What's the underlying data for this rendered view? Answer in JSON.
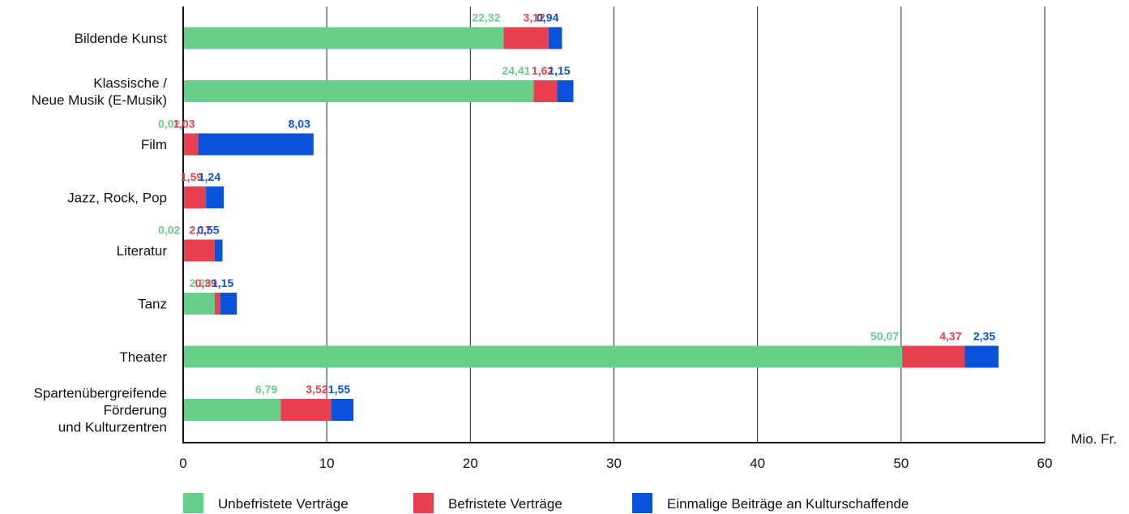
{
  "chart_data": {
    "type": "bar",
    "orientation": "horizontal",
    "stacked": true,
    "unit_label": "Mio. Fr.",
    "xlim": [
      0,
      60
    ],
    "x_ticks": [
      0,
      10,
      20,
      30,
      40,
      50,
      60
    ],
    "x_tick_labels": [
      "0",
      "10",
      "20",
      "30",
      "40",
      "50",
      "60"
    ],
    "grid": true,
    "legend_position": "bottom",
    "categories": [
      [
        "Bildende Kunst"
      ],
      [
        "Klassische /",
        "Neue Musik (E-Musik)"
      ],
      [
        "Film"
      ],
      [
        "Jazz, Rock, Pop"
      ],
      [
        "Literatur"
      ],
      [
        "Tanz"
      ],
      [
        "Theater"
      ],
      [
        "Spartenübergreifende",
        "Förderung",
        "und Kulturzentren"
      ]
    ],
    "series": [
      {
        "name": "Unbefristete Verträge",
        "color": "#67cf8a",
        "values": [
          22.32,
          24.41,
          0.02,
          0,
          0.02,
          2.2,
          50.07,
          6.79
        ],
        "labels": [
          "22,32",
          "24,41",
          "0,02",
          "",
          "0,02",
          "2,20",
          "50,07",
          "6,79"
        ]
      },
      {
        "name": "Befristete Verträge",
        "color": "#e8404f",
        "values": [
          3.12,
          1.62,
          1.03,
          1.59,
          2.17,
          0.39,
          4.37,
          3.52
        ],
        "labels": [
          "3,12",
          "1,62",
          "1,03",
          "1,59",
          "2,17",
          "0,39",
          "4,37",
          "3,52"
        ]
      },
      {
        "name": "Einmalige Beiträge an Kulturschaffende",
        "color": "#0a52d9",
        "values": [
          0.94,
          1.15,
          8.03,
          1.24,
          0.55,
          1.15,
          2.35,
          1.55
        ],
        "labels": [
          "0,94",
          "1,15",
          "8,03",
          "1,24",
          "0,55",
          "1,15",
          "2,35",
          "1,55"
        ]
      }
    ]
  }
}
